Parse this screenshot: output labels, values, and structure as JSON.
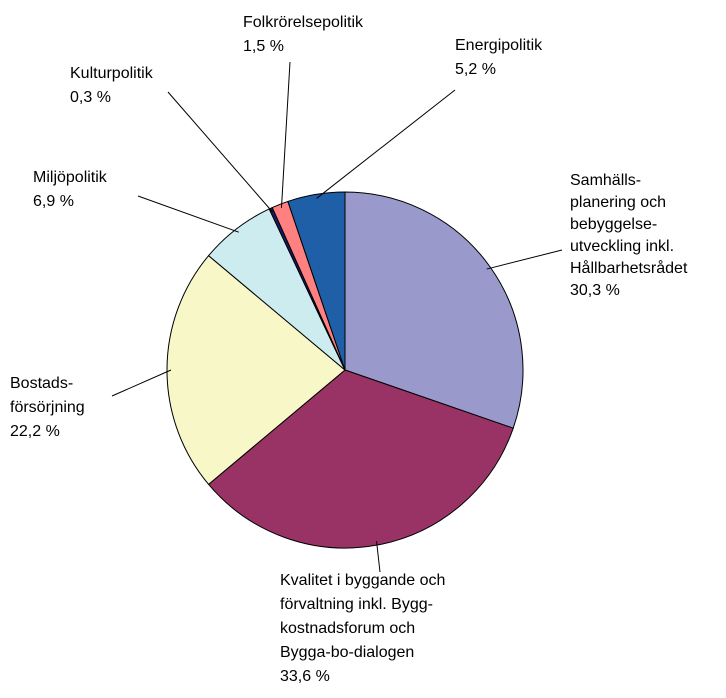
{
  "chart_data": {
    "type": "pie",
    "categories": [
      [
        "Samhälls-",
        "planering och",
        "bebyggelse-",
        "utveckling inkl.",
        "Hållbarhetsrådet"
      ],
      [
        "Kvalitet i byggande och",
        "förvaltning inkl. Bygg-",
        "kostnadsforum och",
        "Bygga-bo-dialogen"
      ],
      [
        "Bostads-",
        "försörjning"
      ],
      [
        "Miljöpolitik"
      ],
      [
        "Kulturpolitik"
      ],
      [
        "Folkrörelsepolitik"
      ],
      [
        "Energipolitik"
      ]
    ],
    "values": [
      30.3,
      33.6,
      22.2,
      6.9,
      0.3,
      1.5,
      5.2
    ],
    "value_labels": [
      "30,3 %",
      "33,6 %",
      "22,2 %",
      "6,9 %",
      "0,3 %",
      "1,5 %",
      "5,2 %"
    ],
    "colors": [
      "#9999cc",
      "#993366",
      "#f7f7c8",
      "#ccecf0",
      "#1a1a66",
      "#ff8080",
      "#1f5fa8"
    ]
  }
}
